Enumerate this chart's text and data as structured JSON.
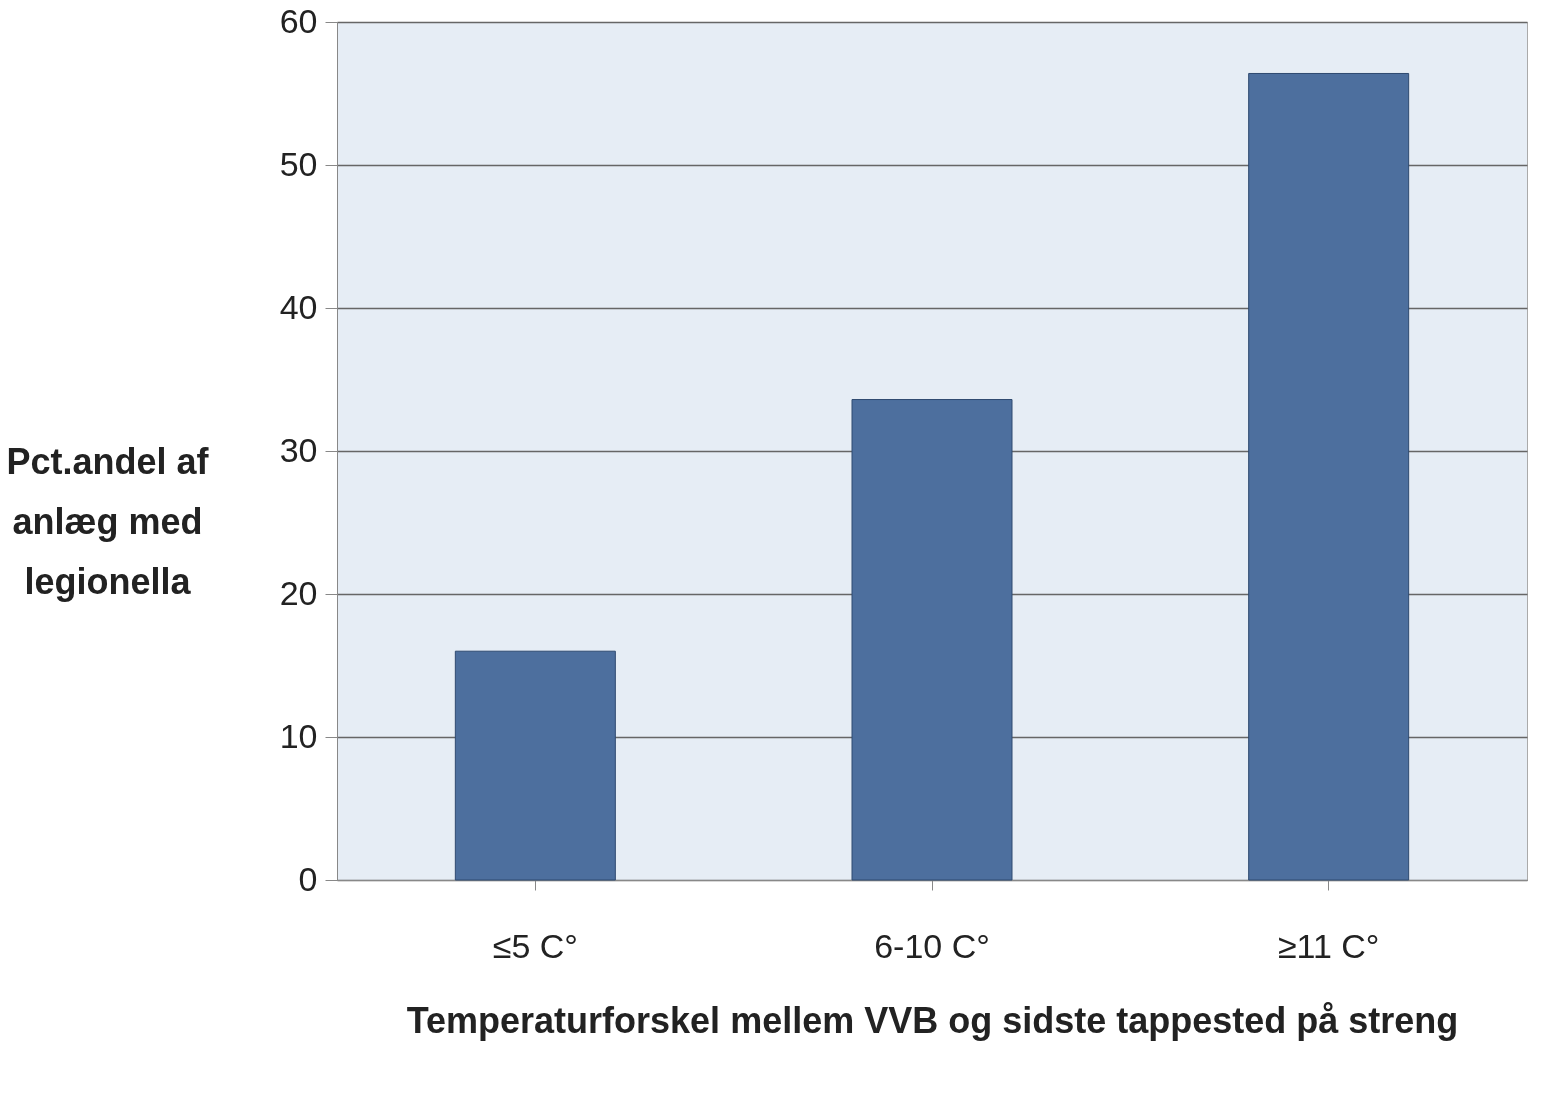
{
  "chart_data": {
    "type": "bar",
    "xlabel": "Temperaturforskel mellem VVB og sidste tappested på streng",
    "ylabel": "Pct.andel af anlæg med legionella",
    "categories": [
      "≤5 C°",
      "6-10 C°",
      "≥11 C°"
    ],
    "values": [
      16,
      33.6,
      56.4
    ],
    "color": "#4d6f9e",
    "ylim": [
      0,
      60
    ],
    "yticks": [
      0,
      10,
      20,
      30,
      40,
      50,
      60
    ],
    "grid": "y"
  }
}
